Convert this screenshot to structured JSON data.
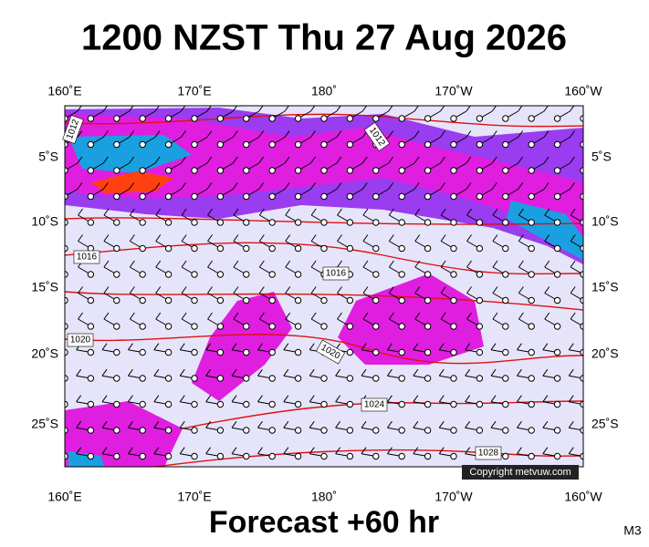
{
  "header": {
    "title": "1200 NZST Thu 27 Aug 2026"
  },
  "map": {
    "lon_labels": [
      "160˚E",
      "170˚E",
      "180˚",
      "170˚W",
      "160˚W"
    ],
    "lat_labels": [
      "5˚S",
      "10˚S",
      "15˚S",
      "20˚S",
      "25˚S"
    ],
    "isobar_labels": [
      "1012",
      "1012",
      "1016",
      "1016",
      "1020",
      "1020",
      "1024",
      "1028"
    ],
    "copyright": "Copyright metvuw.com"
  },
  "footer": {
    "forecast": "Forecast +60 hr",
    "code": "M3"
  }
}
